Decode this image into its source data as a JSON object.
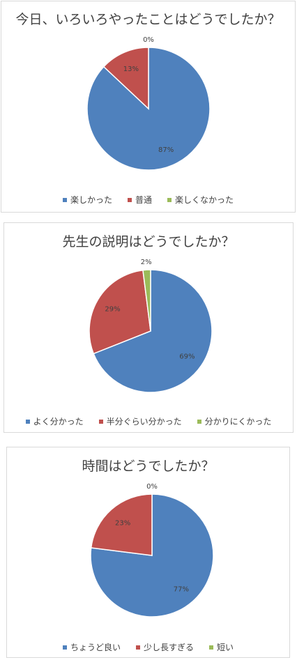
{
  "chart_data": [
    {
      "type": "pie",
      "title": "今日、いろいろやったことはどうでしたか？",
      "categories": [
        "楽しかった",
        "普通",
        "楽しくなかった"
      ],
      "values": [
        87,
        13,
        0
      ],
      "labels": [
        "87%",
        "13%",
        "0%"
      ],
      "colors": [
        "#4f81bd",
        "#c0504d",
        "#9bbb59"
      ],
      "legend": "bottom"
    },
    {
      "type": "pie",
      "title": "先生の説明はどうでしたか？",
      "categories": [
        "よく分かった",
        "半分ぐらい分かった",
        "分かりにくかった"
      ],
      "values": [
        69,
        29,
        2
      ],
      "labels": [
        "69%",
        "29%",
        "2%"
      ],
      "colors": [
        "#4f81bd",
        "#c0504d",
        "#9bbb59"
      ],
      "legend": "bottom"
    },
    {
      "type": "pie",
      "title": "時間はどうでしたか？",
      "categories": [
        "ちょうど良い",
        "少し長すぎる",
        "短い"
      ],
      "values": [
        77,
        23,
        0
      ],
      "labels": [
        "77%",
        "23%",
        "0%"
      ],
      "colors": [
        "#4f81bd",
        "#c0504d",
        "#9bbb59"
      ],
      "legend": "bottom"
    }
  ]
}
